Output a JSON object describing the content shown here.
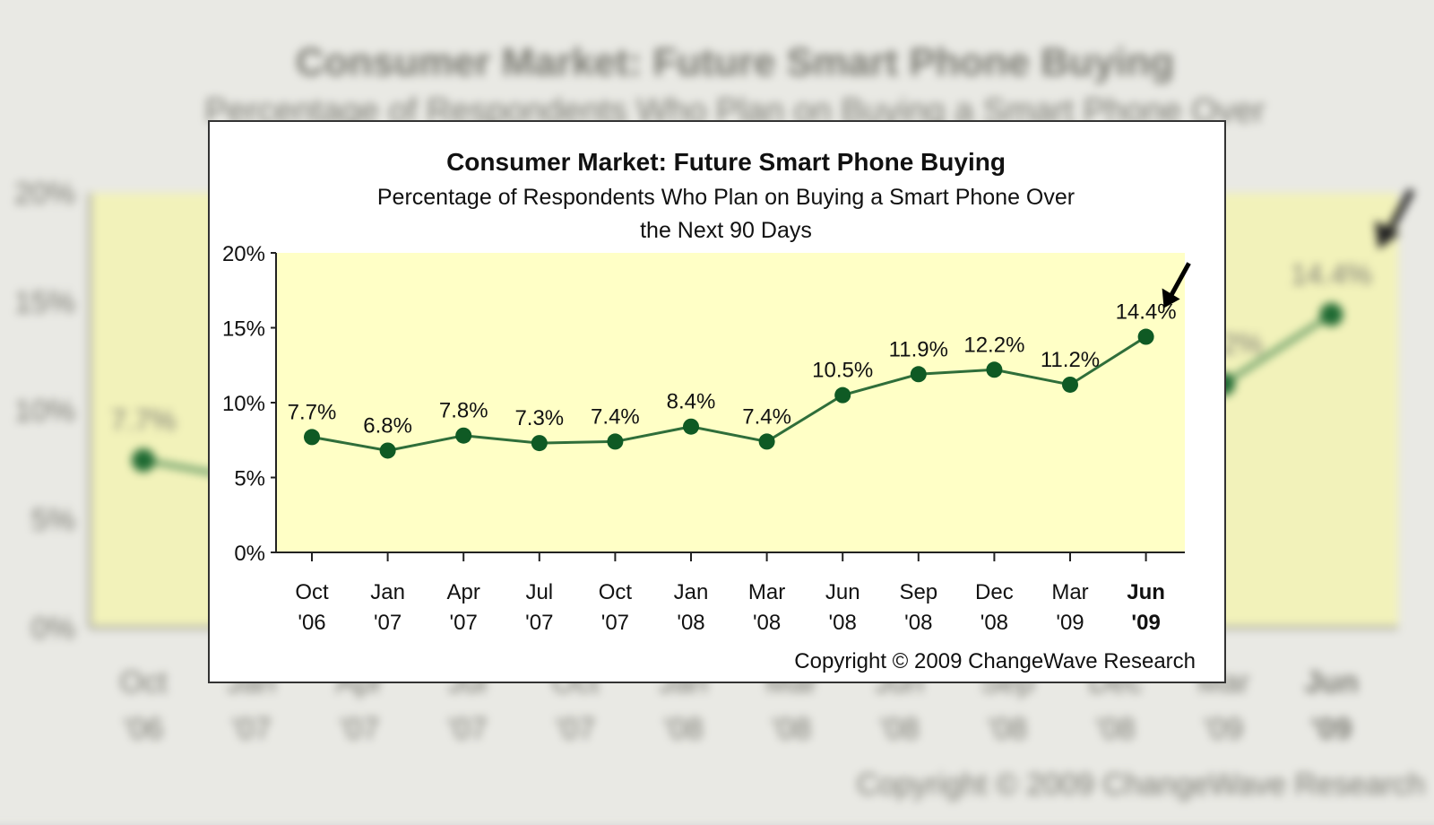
{
  "chart_data": {
    "type": "line",
    "title": "Consumer Market: Future Smart Phone Buying",
    "subtitle_line1": "Percentage of Respondents Who Plan on Buying a Smart Phone Over",
    "subtitle_line2": "the Next 90 Days",
    "categories": [
      [
        "Oct",
        "'06"
      ],
      [
        "Jan",
        "'07"
      ],
      [
        "Apr",
        "'07"
      ],
      [
        "Jul",
        "'07"
      ],
      [
        "Oct",
        "'07"
      ],
      [
        "Jan",
        "'08"
      ],
      [
        "Mar",
        "'08"
      ],
      [
        "Jun",
        "'08"
      ],
      [
        "Sep",
        "'08"
      ],
      [
        "Dec",
        "'08"
      ],
      [
        "Mar",
        "'09"
      ],
      [
        "Jun",
        "'09"
      ]
    ],
    "values": [
      7.7,
      6.8,
      7.8,
      7.3,
      7.4,
      8.4,
      7.4,
      10.5,
      11.9,
      12.2,
      11.2,
      14.4
    ],
    "labels": [
      "7.7%",
      "6.8%",
      "7.8%",
      "7.3%",
      "7.4%",
      "8.4%",
      "7.4%",
      "10.5%",
      "11.9%",
      "12.2%",
      "11.2%",
      "14.4%"
    ],
    "yticks": [
      "0%",
      "5%",
      "10%",
      "15%",
      "20%"
    ],
    "ylim": [
      0,
      20
    ],
    "highlight_index": 11,
    "grid": false,
    "legend": "none",
    "copyright": "Copyright © 2009 ChangeWave Research",
    "colors": {
      "plot_bg": "#ffffc6",
      "line": "#2f6e3a",
      "marker": "#0f5a24",
      "axis": "#222222",
      "arrow": "#000000"
    }
  }
}
